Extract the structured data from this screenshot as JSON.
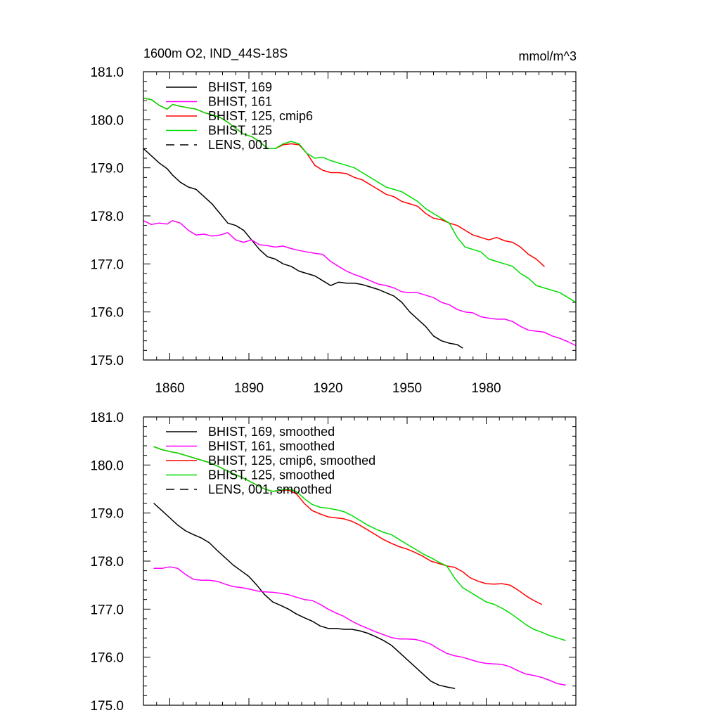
{
  "chart_data": [
    {
      "type": "line",
      "title_left": "1600m O2, IND_44S-18S",
      "title_right": "mmol/m^3",
      "xlim": [
        1850,
        2014
      ],
      "ylim": [
        175.0,
        181.0
      ],
      "xticks": [
        1860,
        1890,
        1920,
        1950,
        1980
      ],
      "xticklabels": [
        "1860",
        "1890",
        "1920",
        "1950",
        "1980"
      ],
      "yticks": [
        175.0,
        176.0,
        177.0,
        178.0,
        179.0,
        180.0,
        181.0
      ],
      "yticklabels": [
        "175.0",
        "176.0",
        "177.0",
        "178.0",
        "179.0",
        "180.0",
        "181.0"
      ],
      "legend_position": "top-left",
      "series": [
        {
          "name": "BHIST, 169",
          "color": "#000000",
          "dash": "solid",
          "x": [
            1850,
            1853,
            1856,
            1859,
            1861,
            1864,
            1867,
            1870,
            1873,
            1876,
            1879,
            1882,
            1885,
            1888,
            1891,
            1894,
            1897,
            1900,
            1903,
            1906,
            1909,
            1912,
            1915,
            1918,
            1921,
            1924,
            1927,
            1930,
            1933,
            1936,
            1939,
            1942,
            1945,
            1948,
            1951,
            1954,
            1957,
            1960,
            1963,
            1966,
            1969,
            1971
          ],
          "values": [
            179.4,
            179.25,
            179.1,
            178.98,
            178.85,
            178.7,
            178.6,
            178.55,
            178.4,
            178.25,
            178.05,
            177.85,
            177.8,
            177.7,
            177.5,
            177.3,
            177.15,
            177.1,
            177.0,
            176.95,
            176.85,
            176.8,
            176.75,
            176.65,
            176.55,
            176.62,
            176.6,
            176.6,
            176.57,
            176.52,
            176.47,
            176.4,
            176.33,
            176.2,
            176.0,
            175.85,
            175.7,
            175.5,
            175.4,
            175.35,
            175.32,
            175.25
          ]
        },
        {
          "name": "BHIST, 161",
          "color": "#ff00ff",
          "dash": "solid",
          "x": [
            1850,
            1853,
            1856,
            1859,
            1861,
            1864,
            1867,
            1870,
            1873,
            1876,
            1879,
            1882,
            1885,
            1888,
            1891,
            1894,
            1897,
            1900,
            1903,
            1906,
            1909,
            1912,
            1915,
            1918,
            1921,
            1924,
            1927,
            1930,
            1933,
            1936,
            1939,
            1942,
            1945,
            1948,
            1951,
            1954,
            1957,
            1960,
            1963,
            1966,
            1969,
            1972,
            1975,
            1978,
            1981,
            1984,
            1987,
            1990,
            1993,
            1996,
            1999,
            2002,
            2005,
            2008,
            2011,
            2014
          ],
          "values": [
            177.9,
            177.82,
            177.85,
            177.83,
            177.9,
            177.85,
            177.7,
            177.6,
            177.62,
            177.58,
            177.6,
            177.65,
            177.5,
            177.45,
            177.5,
            177.4,
            177.38,
            177.35,
            177.37,
            177.32,
            177.28,
            177.25,
            177.22,
            177.2,
            177.05,
            176.95,
            176.85,
            176.78,
            176.72,
            176.65,
            176.58,
            176.55,
            176.5,
            176.42,
            176.4,
            176.4,
            176.35,
            176.3,
            176.2,
            176.15,
            176.05,
            176.0,
            175.98,
            175.9,
            175.87,
            175.85,
            175.85,
            175.8,
            175.7,
            175.62,
            175.6,
            175.58,
            175.5,
            175.45,
            175.38,
            175.3
          ]
        },
        {
          "name": "BHIST, 125, cmip6",
          "color": "#ff0000",
          "dash": "solid",
          "x": [
            1850,
            1853,
            1856,
            1859,
            1861,
            1864,
            1867,
            1870,
            1873,
            1876,
            1879,
            1882,
            1885,
            1888,
            1891,
            1894,
            1897,
            1900,
            1903,
            1906,
            1909,
            1912,
            1915,
            1918,
            1921,
            1924,
            1927,
            1930,
            1933,
            1936,
            1939,
            1942,
            1945,
            1948,
            1951,
            1954,
            1957,
            1960,
            1963,
            1966,
            1969,
            1972,
            1975,
            1978,
            1981,
            1984,
            1987,
            1990,
            1993,
            1996,
            1999,
            2002
          ],
          "values": [
            180.45,
            180.42,
            180.3,
            180.22,
            180.32,
            180.28,
            180.25,
            180.22,
            180.15,
            180.1,
            180.05,
            179.95,
            179.82,
            179.7,
            179.65,
            179.55,
            179.4,
            179.4,
            179.48,
            179.5,
            179.48,
            179.3,
            179.05,
            178.95,
            178.9,
            178.9,
            178.88,
            178.8,
            178.75,
            178.65,
            178.55,
            178.45,
            178.4,
            178.3,
            178.25,
            178.2,
            178.05,
            177.95,
            177.92,
            177.85,
            177.8,
            177.7,
            177.6,
            177.55,
            177.5,
            177.55,
            177.48,
            177.45,
            177.35,
            177.2,
            177.1,
            176.95
          ]
        },
        {
          "name": "BHIST, 125",
          "color": "#00dd00",
          "dash": "solid",
          "x": [
            1850,
            1853,
            1856,
            1859,
            1861,
            1864,
            1867,
            1870,
            1873,
            1876,
            1879,
            1882,
            1885,
            1888,
            1891,
            1894,
            1897,
            1900,
            1903,
            1906,
            1909,
            1912,
            1915,
            1918,
            1921,
            1924,
            1927,
            1930,
            1933,
            1936,
            1939,
            1942,
            1945,
            1948,
            1951,
            1954,
            1957,
            1960,
            1963,
            1966,
            1969,
            1972,
            1975,
            1978,
            1981,
            1984,
            1987,
            1990,
            1993,
            1996,
            1999,
            2002,
            2005,
            2008,
            2011,
            2014
          ],
          "values": [
            180.45,
            180.42,
            180.3,
            180.22,
            180.32,
            180.28,
            180.25,
            180.22,
            180.15,
            180.1,
            180.05,
            179.95,
            179.82,
            179.7,
            179.65,
            179.55,
            179.4,
            179.4,
            179.5,
            179.55,
            179.5,
            179.3,
            179.2,
            179.22,
            179.15,
            179.1,
            179.05,
            179.0,
            178.9,
            178.8,
            178.7,
            178.6,
            178.55,
            178.5,
            178.4,
            178.3,
            178.15,
            178.05,
            177.95,
            177.85,
            177.55,
            177.35,
            177.3,
            177.25,
            177.1,
            177.05,
            177.0,
            176.95,
            176.8,
            176.7,
            176.55,
            176.5,
            176.45,
            176.4,
            176.3,
            176.2
          ]
        },
        {
          "name": "LENS, 001",
          "color": "#000000",
          "dash": "dashed",
          "x": [],
          "values": []
        }
      ]
    },
    {
      "type": "line",
      "xlim": [
        1850,
        2014
      ],
      "ylim": [
        175.0,
        181.0
      ],
      "xticks": [
        1860,
        1890,
        1920,
        1950,
        1980
      ],
      "yticks": [
        175.0,
        176.0,
        177.0,
        178.0,
        179.0,
        180.0,
        181.0
      ],
      "yticklabels": [
        "175.0",
        "176.0",
        "177.0",
        "178.0",
        "179.0",
        "180.0",
        "181.0"
      ],
      "legend_position": "top-left",
      "series": [
        {
          "name": "BHIST, 169, smoothed",
          "color": "#000000",
          "dash": "solid",
          "x": [
            1854,
            1857,
            1860,
            1863,
            1866,
            1869,
            1872,
            1875,
            1878,
            1881,
            1884,
            1887,
            1890,
            1893,
            1896,
            1899,
            1902,
            1905,
            1908,
            1911,
            1914,
            1917,
            1920,
            1923,
            1926,
            1929,
            1932,
            1935,
            1938,
            1941,
            1944,
            1947,
            1950,
            1953,
            1956,
            1959,
            1962,
            1965,
            1968
          ],
          "values": [
            179.2,
            179.05,
            178.9,
            178.75,
            178.63,
            178.55,
            178.48,
            178.38,
            178.22,
            178.07,
            177.92,
            177.8,
            177.68,
            177.5,
            177.3,
            177.15,
            177.08,
            177.0,
            176.9,
            176.82,
            176.75,
            176.65,
            176.6,
            176.6,
            176.58,
            176.58,
            176.55,
            176.5,
            176.43,
            176.35,
            176.25,
            176.1,
            175.95,
            175.8,
            175.65,
            175.5,
            175.42,
            175.38,
            175.35
          ]
        },
        {
          "name": "BHIST, 161, smoothed",
          "color": "#ff00ff",
          "dash": "solid",
          "x": [
            1854,
            1857,
            1860,
            1863,
            1866,
            1869,
            1872,
            1875,
            1878,
            1881,
            1884,
            1887,
            1890,
            1893,
            1896,
            1899,
            1902,
            1905,
            1908,
            1911,
            1914,
            1917,
            1920,
            1923,
            1926,
            1929,
            1932,
            1935,
            1938,
            1941,
            1944,
            1947,
            1950,
            1953,
            1956,
            1959,
            1962,
            1965,
            1968,
            1971,
            1974,
            1977,
            1980,
            1983,
            1986,
            1989,
            1992,
            1995,
            1998,
            2001,
            2004,
            2007,
            2010
          ],
          "values": [
            177.85,
            177.85,
            177.88,
            177.85,
            177.72,
            177.62,
            177.6,
            177.6,
            177.58,
            177.52,
            177.47,
            177.45,
            177.42,
            177.38,
            177.36,
            177.35,
            177.33,
            177.3,
            177.25,
            177.2,
            177.18,
            177.1,
            177.0,
            176.92,
            176.85,
            176.75,
            176.67,
            176.6,
            176.53,
            176.47,
            176.41,
            176.38,
            176.38,
            176.37,
            176.33,
            176.27,
            176.17,
            176.08,
            176.03,
            176.0,
            175.95,
            175.9,
            175.87,
            175.86,
            175.85,
            175.8,
            175.72,
            175.65,
            175.62,
            175.58,
            175.52,
            175.45,
            175.42
          ]
        },
        {
          "name": "BHIST, 125, cmip6, smoothed",
          "color": "#ff0000",
          "dash": "solid",
          "x": [
            1854,
            1857,
            1860,
            1863,
            1866,
            1869,
            1872,
            1875,
            1878,
            1881,
            1884,
            1887,
            1890,
            1893,
            1896,
            1899,
            1902,
            1905,
            1908,
            1911,
            1914,
            1917,
            1920,
            1923,
            1926,
            1929,
            1932,
            1935,
            1938,
            1941,
            1944,
            1947,
            1950,
            1953,
            1956,
            1959,
            1962,
            1965,
            1968,
            1971,
            1974,
            1977,
            1980,
            1983,
            1986,
            1989,
            1992,
            1995,
            1998,
            2001
          ],
          "values": [
            180.38,
            180.32,
            180.28,
            180.25,
            180.2,
            180.15,
            180.1,
            180.05,
            179.98,
            179.9,
            179.82,
            179.75,
            179.67,
            179.58,
            179.5,
            179.45,
            179.47,
            179.48,
            179.4,
            179.2,
            179.05,
            178.98,
            178.92,
            178.9,
            178.88,
            178.83,
            178.75,
            178.65,
            178.55,
            178.45,
            178.37,
            178.3,
            178.25,
            178.18,
            178.1,
            178.0,
            177.95,
            177.9,
            177.87,
            177.78,
            177.65,
            177.58,
            177.53,
            177.52,
            177.53,
            177.5,
            177.4,
            177.28,
            177.18,
            177.1
          ]
        },
        {
          "name": "BHIST, 125, smoothed",
          "color": "#00dd00",
          "dash": "solid",
          "x": [
            1854,
            1857,
            1860,
            1863,
            1866,
            1869,
            1872,
            1875,
            1878,
            1881,
            1884,
            1887,
            1890,
            1893,
            1896,
            1899,
            1902,
            1905,
            1908,
            1911,
            1914,
            1917,
            1920,
            1923,
            1926,
            1929,
            1932,
            1935,
            1938,
            1941,
            1944,
            1947,
            1950,
            1953,
            1956,
            1959,
            1962,
            1965,
            1968,
            1971,
            1974,
            1977,
            1980,
            1983,
            1986,
            1989,
            1992,
            1995,
            1998,
            2001,
            2004,
            2007,
            2010
          ],
          "values": [
            180.38,
            180.32,
            180.28,
            180.25,
            180.2,
            180.15,
            180.1,
            180.05,
            179.98,
            179.9,
            179.82,
            179.75,
            179.67,
            179.58,
            179.5,
            179.45,
            179.48,
            179.5,
            179.45,
            179.3,
            179.18,
            179.12,
            179.1,
            179.07,
            179.03,
            178.95,
            178.85,
            178.75,
            178.67,
            178.6,
            178.55,
            178.45,
            178.35,
            178.25,
            178.15,
            178.07,
            177.98,
            177.9,
            177.65,
            177.45,
            177.35,
            177.25,
            177.15,
            177.1,
            177.02,
            176.92,
            176.8,
            176.68,
            176.58,
            176.52,
            176.45,
            176.4,
            176.35
          ]
        },
        {
          "name": "LENS, 001, smoothed",
          "color": "#000000",
          "dash": "dashed",
          "x": [],
          "values": []
        }
      ]
    }
  ]
}
